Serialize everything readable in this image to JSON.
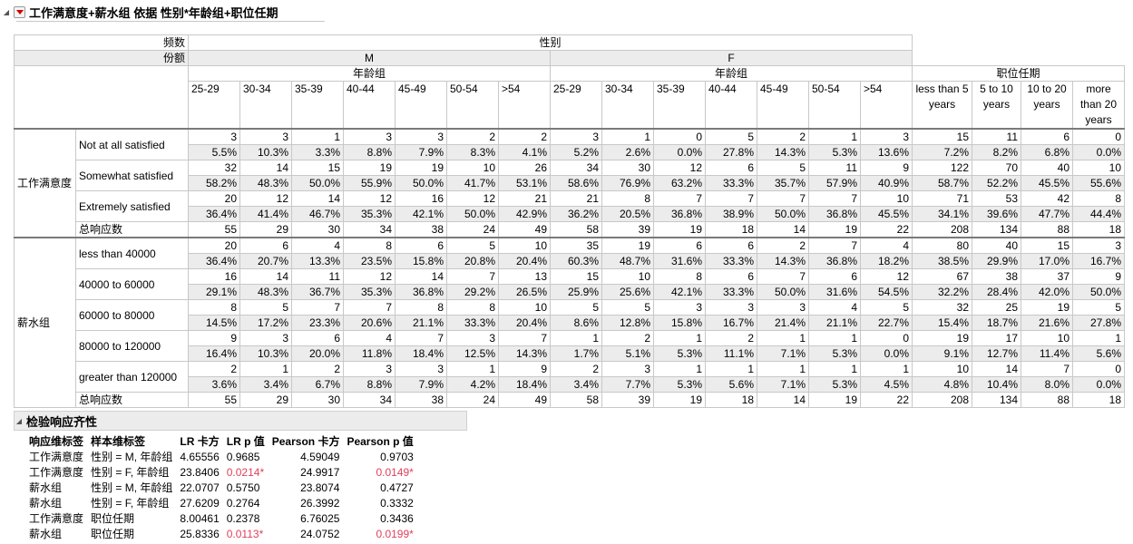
{
  "report": {
    "title": "工作满意度+薪水组 依据 性别*年龄组+职位任期"
  },
  "table": {
    "corner_freq": "频数",
    "corner_share": "份额",
    "top_header": "性别",
    "gender_m": "M",
    "gender_f": "F",
    "age_group": "年龄组",
    "tenure_header": "职位任期",
    "columns": [
      "25-29",
      "30-34",
      "35-39",
      "40-44",
      "45-49",
      "50-54",
      ">54",
      "25-29",
      "30-34",
      "35-39",
      "40-44",
      "45-49",
      "50-54",
      ">54",
      "less than 5 years",
      "5 to 10 years",
      "10 to 20 years",
      "more than 20 years"
    ],
    "total_label": "总响应数",
    "sections": [
      {
        "name": "工作满意度",
        "rows": [
          {
            "label": "Not at all satisfied",
            "counts": [
              "3",
              "3",
              "1",
              "3",
              "3",
              "2",
              "2",
              "3",
              "1",
              "0",
              "5",
              "2",
              "1",
              "3",
              "15",
              "11",
              "6",
              "0"
            ],
            "pcts": [
              "5.5%",
              "10.3%",
              "3.3%",
              "8.8%",
              "7.9%",
              "8.3%",
              "4.1%",
              "5.2%",
              "2.6%",
              "0.0%",
              "27.8%",
              "14.3%",
              "5.3%",
              "13.6%",
              "7.2%",
              "8.2%",
              "6.8%",
              "0.0%"
            ]
          },
          {
            "label": "Somewhat satisfied",
            "counts": [
              "32",
              "14",
              "15",
              "19",
              "19",
              "10",
              "26",
              "34",
              "30",
              "12",
              "6",
              "5",
              "11",
              "9",
              "122",
              "70",
              "40",
              "10"
            ],
            "pcts": [
              "58.2%",
              "48.3%",
              "50.0%",
              "55.9%",
              "50.0%",
              "41.7%",
              "53.1%",
              "58.6%",
              "76.9%",
              "63.2%",
              "33.3%",
              "35.7%",
              "57.9%",
              "40.9%",
              "58.7%",
              "52.2%",
              "45.5%",
              "55.6%"
            ]
          },
          {
            "label": "Extremely satisfied",
            "counts": [
              "20",
              "12",
              "14",
              "12",
              "16",
              "12",
              "21",
              "21",
              "8",
              "7",
              "7",
              "7",
              "7",
              "10",
              "71",
              "53",
              "42",
              "8"
            ],
            "pcts": [
              "36.4%",
              "41.4%",
              "46.7%",
              "35.3%",
              "42.1%",
              "50.0%",
              "42.9%",
              "36.2%",
              "20.5%",
              "36.8%",
              "38.9%",
              "50.0%",
              "36.8%",
              "45.5%",
              "34.1%",
              "39.6%",
              "47.7%",
              "44.4%"
            ]
          }
        ],
        "totals": [
          "55",
          "29",
          "30",
          "34",
          "38",
          "24",
          "49",
          "58",
          "39",
          "19",
          "18",
          "14",
          "19",
          "22",
          "208",
          "134",
          "88",
          "18"
        ]
      },
      {
        "name": "薪水组",
        "rows": [
          {
            "label": "less than 40000",
            "counts": [
              "20",
              "6",
              "4",
              "8",
              "6",
              "5",
              "10",
              "35",
              "19",
              "6",
              "6",
              "2",
              "7",
              "4",
              "80",
              "40",
              "15",
              "3"
            ],
            "pcts": [
              "36.4%",
              "20.7%",
              "13.3%",
              "23.5%",
              "15.8%",
              "20.8%",
              "20.4%",
              "60.3%",
              "48.7%",
              "31.6%",
              "33.3%",
              "14.3%",
              "36.8%",
              "18.2%",
              "38.5%",
              "29.9%",
              "17.0%",
              "16.7%"
            ]
          },
          {
            "label": "40000 to 60000",
            "counts": [
              "16",
              "14",
              "11",
              "12",
              "14",
              "7",
              "13",
              "15",
              "10",
              "8",
              "6",
              "7",
              "6",
              "12",
              "67",
              "38",
              "37",
              "9"
            ],
            "pcts": [
              "29.1%",
              "48.3%",
              "36.7%",
              "35.3%",
              "36.8%",
              "29.2%",
              "26.5%",
              "25.9%",
              "25.6%",
              "42.1%",
              "33.3%",
              "50.0%",
              "31.6%",
              "54.5%",
              "32.2%",
              "28.4%",
              "42.0%",
              "50.0%"
            ]
          },
          {
            "label": "60000 to 80000",
            "counts": [
              "8",
              "5",
              "7",
              "7",
              "8",
              "8",
              "10",
              "5",
              "5",
              "3",
              "3",
              "3",
              "4",
              "5",
              "32",
              "25",
              "19",
              "5"
            ],
            "pcts": [
              "14.5%",
              "17.2%",
              "23.3%",
              "20.6%",
              "21.1%",
              "33.3%",
              "20.4%",
              "8.6%",
              "12.8%",
              "15.8%",
              "16.7%",
              "21.4%",
              "21.1%",
              "22.7%",
              "15.4%",
              "18.7%",
              "21.6%",
              "27.8%"
            ]
          },
          {
            "label": "80000 to 120000",
            "counts": [
              "9",
              "3",
              "6",
              "4",
              "7",
              "3",
              "7",
              "1",
              "2",
              "1",
              "2",
              "1",
              "1",
              "0",
              "19",
              "17",
              "10",
              "1"
            ],
            "pcts": [
              "16.4%",
              "10.3%",
              "20.0%",
              "11.8%",
              "18.4%",
              "12.5%",
              "14.3%",
              "1.7%",
              "5.1%",
              "5.3%",
              "11.1%",
              "7.1%",
              "5.3%",
              "0.0%",
              "9.1%",
              "12.7%",
              "11.4%",
              "5.6%"
            ]
          },
          {
            "label": "greater than 120000",
            "counts": [
              "2",
              "1",
              "2",
              "3",
              "3",
              "1",
              "9",
              "2",
              "3",
              "1",
              "1",
              "1",
              "1",
              "1",
              "10",
              "14",
              "7",
              "0"
            ],
            "pcts": [
              "3.6%",
              "3.4%",
              "6.7%",
              "8.8%",
              "7.9%",
              "4.2%",
              "18.4%",
              "3.4%",
              "7.7%",
              "5.3%",
              "5.6%",
              "7.1%",
              "5.3%",
              "4.5%",
              "4.8%",
              "10.4%",
              "8.0%",
              "0.0%"
            ]
          }
        ],
        "totals": [
          "55",
          "29",
          "30",
          "34",
          "38",
          "24",
          "49",
          "58",
          "39",
          "19",
          "18",
          "14",
          "19",
          "22",
          "208",
          "134",
          "88",
          "18"
        ]
      }
    ]
  },
  "tests": {
    "title": "检验响应齐性",
    "headers": [
      "响应维标签",
      "样本维标签",
      "LR 卡方",
      "LR p 值",
      "Pearson 卡方",
      "Pearson p 值"
    ],
    "rows": [
      {
        "response": "工作满意度",
        "sample": "性别 = M, 年龄组",
        "lr_chi": "4.65556",
        "lr_p": "0.9685",
        "lr_sig": false,
        "pearson_chi": "4.59049",
        "pearson_p": "0.9703",
        "pearson_sig": false
      },
      {
        "response": "工作满意度",
        "sample": "性别 = F, 年龄组",
        "lr_chi": "23.8406",
        "lr_p": "0.0214*",
        "lr_sig": true,
        "pearson_chi": "24.9917",
        "pearson_p": "0.0149*",
        "pearson_sig": true
      },
      {
        "response": "薪水组",
        "sample": "性别 = M, 年龄组",
        "lr_chi": "22.0707",
        "lr_p": "0.5750",
        "lr_sig": false,
        "pearson_chi": "23.8074",
        "pearson_p": "0.4727",
        "pearson_sig": false
      },
      {
        "response": "薪水组",
        "sample": "性别 = F, 年龄组",
        "lr_chi": "27.6209",
        "lr_p": "0.2764",
        "lr_sig": false,
        "pearson_chi": "26.3992",
        "pearson_p": "0.3332",
        "pearson_sig": false
      },
      {
        "response": "工作满意度",
        "sample": "职位任期",
        "lr_chi": "8.00461",
        "lr_p": "0.2378",
        "lr_sig": false,
        "pearson_chi": "6.76025",
        "pearson_p": "0.3436",
        "pearson_sig": false
      },
      {
        "response": "薪水组",
        "sample": "职位任期",
        "lr_chi": "25.8336",
        "lr_p": "0.0113*",
        "lr_sig": true,
        "pearson_chi": "24.0752",
        "pearson_p": "0.0199*",
        "pearson_sig": true
      }
    ]
  },
  "colors": {
    "significant": "#e0405a",
    "shade": "#ececec",
    "menu_triangle": "#d40000"
  },
  "icons": {
    "disclosure": "disclosure-triangle-icon",
    "menu": "red-triangle-menu-icon"
  }
}
